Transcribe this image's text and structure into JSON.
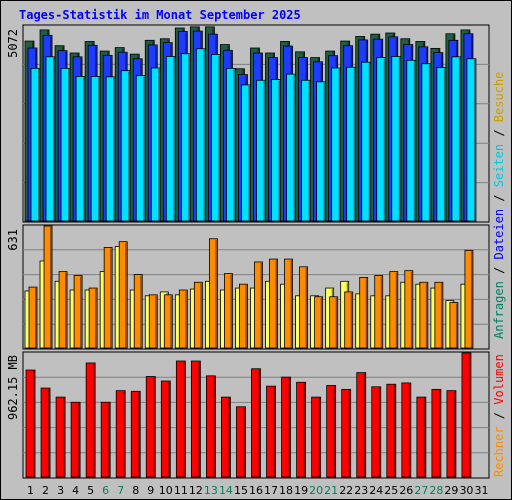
{
  "chart_data": [
    {
      "type": "bar",
      "title": "Tages-Statistik im Monat September 2025",
      "ylabel": "5072",
      "ylim": [
        0,
        5072
      ],
      "grid": true,
      "categories": [
        "1",
        "2",
        "3",
        "4",
        "5",
        "6",
        "7",
        "8",
        "9",
        "10",
        "11",
        "12",
        "13",
        "14",
        "15",
        "16",
        "17",
        "18",
        "19",
        "20",
        "21",
        "22",
        "23",
        "24",
        "25",
        "26",
        "27",
        "28",
        "29",
        "30"
      ],
      "series": [
        {
          "name": "Anfragen",
          "color": "#206040",
          "values": [
            4680,
            4970,
            4560,
            4370,
            4670,
            4420,
            4510,
            4340,
            4700,
            4740,
            5020,
            5050,
            5050,
            4590,
            3960,
            4500,
            4370,
            4670,
            4400,
            4250,
            4420,
            4680,
            4800,
            4860,
            4890,
            4740,
            4670,
            4490,
            4870,
            4970
          ]
        },
        {
          "name": "Dateien",
          "color": "#1e3cff",
          "values": [
            4500,
            4830,
            4430,
            4270,
            4570,
            4310,
            4390,
            4220,
            4580,
            4640,
            4930,
            4940,
            4860,
            4440,
            3810,
            4370,
            4250,
            4550,
            4250,
            4140,
            4300,
            4560,
            4710,
            4730,
            4790,
            4590,
            4530,
            4380,
            4700,
            4870
          ]
        },
        {
          "name": "Seiten",
          "color": "#00e0ff",
          "values": [
            3970,
            4270,
            3970,
            3760,
            3760,
            3750,
            3910,
            3780,
            3980,
            4280,
            4350,
            4480,
            4330,
            3970,
            3540,
            3660,
            3680,
            3820,
            3660,
            3620,
            3980,
            4000,
            4130,
            4250,
            4280,
            4180,
            4090,
            3990,
            4270,
            4220
          ]
        }
      ]
    },
    {
      "type": "bar",
      "ylabel": "631",
      "ylim": [
        0,
        631
      ],
      "grid": true,
      "categories": [
        "1",
        "2",
        "3",
        "4",
        "5",
        "6",
        "7",
        "8",
        "9",
        "10",
        "11",
        "12",
        "13",
        "14",
        "15",
        "16",
        "17",
        "18",
        "19",
        "20",
        "21",
        "22",
        "23",
        "24",
        "25",
        "26",
        "27",
        "28",
        "29",
        "30"
      ],
      "series": [
        {
          "name": "Besuche",
          "color": "#ffff60",
          "values": [
            295,
            450,
            345,
            300,
            300,
            395,
            525,
            300,
            270,
            290,
            275,
            305,
            345,
            300,
            310,
            310,
            345,
            330,
            270,
            270,
            310,
            345,
            280,
            270,
            270,
            340,
            330,
            310,
            245,
            330
          ]
        },
        {
          "name": "Rechner",
          "color": "#ff8c00",
          "values": [
            315,
            631,
            395,
            375,
            310,
            520,
            550,
            380,
            275,
            275,
            300,
            340,
            565,
            385,
            330,
            445,
            460,
            460,
            420,
            265,
            265,
            290,
            365,
            375,
            395,
            400,
            340,
            340,
            235,
            505
          ]
        }
      ]
    },
    {
      "type": "bar",
      "ylabel": "962.15 MB",
      "ylim": [
        0,
        962.15
      ],
      "grid": true,
      "categories": [
        "1",
        "2",
        "3",
        "4",
        "5",
        "6",
        "7",
        "8",
        "9",
        "10",
        "11",
        "12",
        "13",
        "14",
        "15",
        "16",
        "17",
        "18",
        "19",
        "20",
        "21",
        "22",
        "23",
        "24",
        "25",
        "26",
        "27",
        "28",
        "29",
        "30"
      ],
      "series": [
        {
          "name": "Volumen",
          "color": "#ff0000",
          "values": [
            830,
            690,
            620,
            580,
            885,
            580,
            670,
            665,
            780,
            745,
            900,
            900,
            785,
            620,
            545,
            840,
            705,
            775,
            735,
            620,
            710,
            680,
            810,
            700,
            720,
            730,
            620,
            680,
            670,
            962.15
          ]
        }
      ]
    }
  ],
  "x_tick_labels": [
    {
      "label": "1",
      "color": "#000000"
    },
    {
      "label": "2",
      "color": "#000000"
    },
    {
      "label": "3",
      "color": "#000000"
    },
    {
      "label": "4",
      "color": "#000000"
    },
    {
      "label": "5",
      "color": "#000000"
    },
    {
      "label": "6",
      "color": "#00805c"
    },
    {
      "label": "7",
      "color": "#00805c"
    },
    {
      "label": "8",
      "color": "#000000"
    },
    {
      "label": "9",
      "color": "#000000"
    },
    {
      "label": "10",
      "color": "#000000"
    },
    {
      "label": "11",
      "color": "#000000"
    },
    {
      "label": "12",
      "color": "#000000"
    },
    {
      "label": "13",
      "color": "#00805c"
    },
    {
      "label": "14",
      "color": "#00805c"
    },
    {
      "label": "15",
      "color": "#000000"
    },
    {
      "label": "16",
      "color": "#000000"
    },
    {
      "label": "17",
      "color": "#000000"
    },
    {
      "label": "18",
      "color": "#000000"
    },
    {
      "label": "19",
      "color": "#000000"
    },
    {
      "label": "20",
      "color": "#00805c"
    },
    {
      "label": "21",
      "color": "#00805c"
    },
    {
      "label": "22",
      "color": "#000000"
    },
    {
      "label": "23",
      "color": "#000000"
    },
    {
      "label": "24",
      "color": "#000000"
    },
    {
      "label": "25",
      "color": "#000000"
    },
    {
      "label": "26",
      "color": "#000000"
    },
    {
      "label": "27",
      "color": "#00805c"
    },
    {
      "label": "28",
      "color": "#00805c"
    },
    {
      "label": "29",
      "color": "#000000"
    },
    {
      "label": "30",
      "color": "#000000"
    },
    {
      "label": "31",
      "color": "#000000"
    }
  ],
  "right_legend_top": {
    "parts": [
      {
        "text": "Anfragen",
        "color": "#00805c"
      },
      {
        "text": " / ",
        "color": "#000000"
      },
      {
        "text": "Dateien",
        "color": "#0000ff"
      },
      {
        "text": " / ",
        "color": "#000000"
      },
      {
        "text": "Seiten",
        "color": "#00c8dc"
      },
      {
        "text": " / ",
        "color": "#000000"
      },
      {
        "text": "Besuche",
        "color": "#c8a000"
      }
    ]
  },
  "right_legend_bottom": {
    "parts": [
      {
        "text": "Rechner",
        "color": "#ff8c00"
      },
      {
        "text": " / ",
        "color": "#000000"
      },
      {
        "text": "Volumen",
        "color": "#ff0000"
      }
    ]
  },
  "colors": {
    "background": "#c0c0c0",
    "plot_background": "#c0c0c0",
    "title": "#0000ff"
  }
}
